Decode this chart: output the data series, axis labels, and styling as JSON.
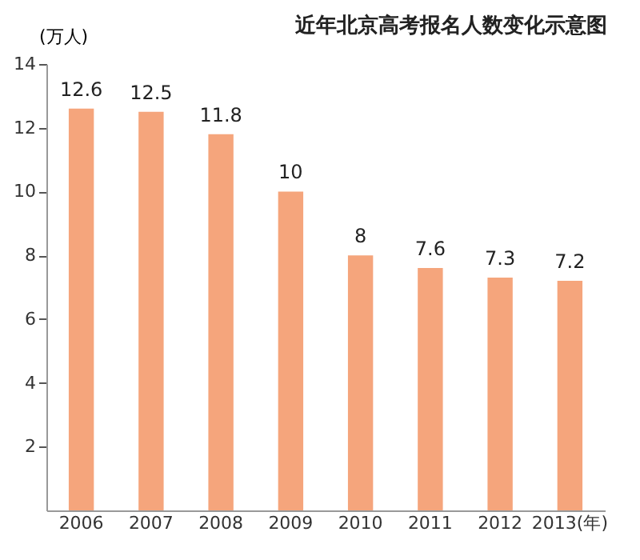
{
  "chart_data": {
    "type": "bar",
    "title": "近年北京高考报名人数变化示意图",
    "ylabel": "(万人)",
    "categories": [
      "2006",
      "2007",
      "2008",
      "2009",
      "2010",
      "2011",
      "2012",
      "2013(年)"
    ],
    "values": [
      12.6,
      12.5,
      11.8,
      10,
      8,
      7.6,
      7.3,
      7.2
    ],
    "color": "#f5a57c",
    "ylim": [
      0,
      14
    ],
    "yticks": [
      2,
      4,
      6,
      8,
      10,
      12,
      14
    ],
    "data_labels": true,
    "grid": false
  }
}
